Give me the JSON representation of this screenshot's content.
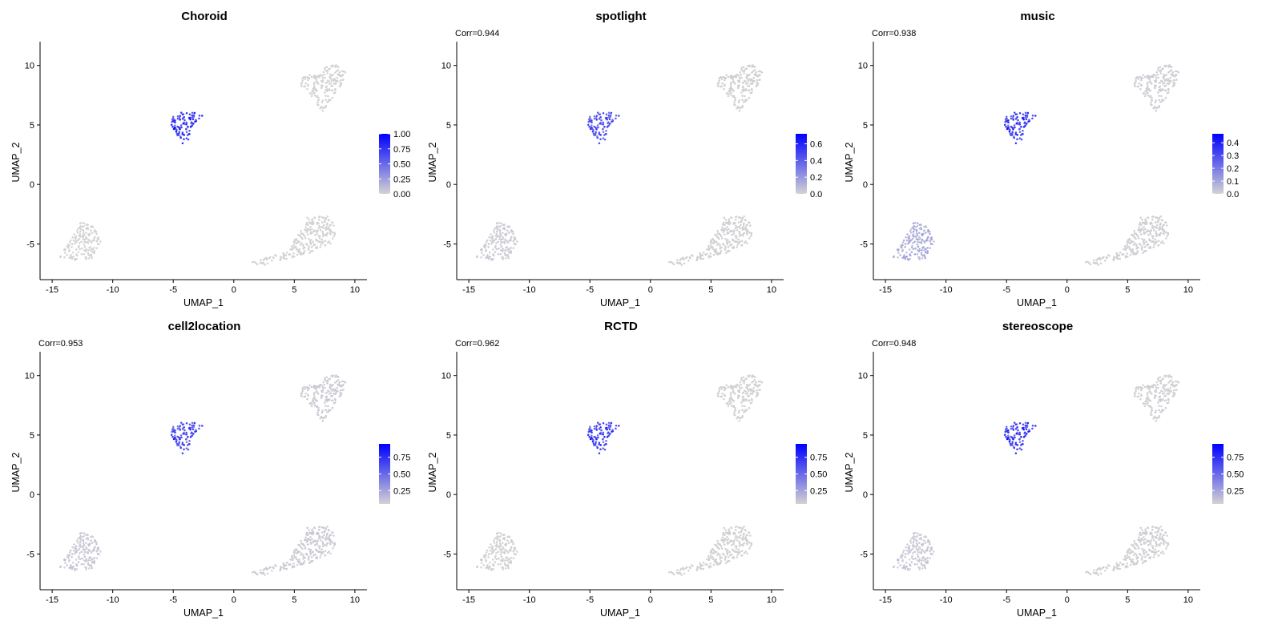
{
  "colors": {
    "low": "#D3D3D3",
    "high": "#0000FF"
  },
  "chart_data": [
    {
      "type": "scatter",
      "title": "Choroid",
      "annotation": "",
      "xlabel": "UMAP_1",
      "ylabel": "UMAP_2",
      "xlim": [
        -16,
        11
      ],
      "ylim": [
        -8,
        12
      ],
      "xticks": [
        "-15",
        "-10",
        "-5",
        "0",
        "5",
        "10"
      ],
      "yticks": [
        "-5",
        "0",
        "5",
        "10"
      ],
      "legend": {
        "min": 0,
        "max": 1.0,
        "ticks": [
          "0.00",
          "0.25",
          "0.50",
          "0.75",
          "1.00"
        ],
        "position": "right"
      },
      "cluster_values": {
        "A": 0.85,
        "B": 0.0,
        "C": 0.0,
        "D": 0.0
      }
    },
    {
      "type": "scatter",
      "title": "spotlight",
      "annotation": "Corr=0.944",
      "xlabel": "UMAP_1",
      "ylabel": "UMAP_2",
      "xlim": [
        -16,
        11
      ],
      "ylim": [
        -8,
        12
      ],
      "xticks": [
        "-15",
        "-10",
        "-5",
        "0",
        "5",
        "10"
      ],
      "yticks": [
        "-5",
        "0",
        "5",
        "10"
      ],
      "legend": {
        "min": 0,
        "max": 0.72,
        "ticks": [
          "0.0",
          "0.2",
          "0.4",
          "0.6"
        ],
        "position": "right"
      },
      "cluster_values": {
        "A": 0.5,
        "B": 0.03,
        "C": 0.01,
        "D": 0.01
      }
    },
    {
      "type": "scatter",
      "title": "music",
      "annotation": "Corr=0.938",
      "xlabel": "UMAP_1",
      "ylabel": "UMAP_2",
      "xlim": [
        -16,
        11
      ],
      "ylim": [
        -8,
        12
      ],
      "xticks": [
        "-15",
        "-10",
        "-5",
        "0",
        "5",
        "10"
      ],
      "yticks": [
        "-5",
        "0",
        "5",
        "10"
      ],
      "legend": {
        "min": 0,
        "max": 0.47,
        "ticks": [
          "0.0",
          "0.1",
          "0.2",
          "0.3",
          "0.4"
        ],
        "position": "right"
      },
      "cluster_values": {
        "A": 0.38,
        "B": 0.09,
        "C": 0.01,
        "D": 0.01
      }
    },
    {
      "type": "scatter",
      "title": "cell2location",
      "annotation": "Corr=0.953",
      "xlabel": "UMAP_1",
      "ylabel": "UMAP_2",
      "xlim": [
        -16,
        11
      ],
      "ylim": [
        -8,
        12
      ],
      "xticks": [
        "-15",
        "-10",
        "-5",
        "0",
        "5",
        "10"
      ],
      "yticks": [
        "-5",
        "0",
        "5",
        "10"
      ],
      "legend": {
        "min": 0.05,
        "max": 0.95,
        "ticks": [
          "0.25",
          "0.50",
          "0.75"
        ],
        "position": "right"
      },
      "cluster_values": {
        "A": 0.72,
        "B": 0.1,
        "C": 0.08,
        "D": 0.08
      }
    },
    {
      "type": "scatter",
      "title": "RCTD",
      "annotation": "Corr=0.962",
      "xlabel": "UMAP_1",
      "ylabel": "UMAP_2",
      "xlim": [
        -16,
        11
      ],
      "ylim": [
        -8,
        12
      ],
      "xticks": [
        "-15",
        "-10",
        "-5",
        "0",
        "5",
        "10"
      ],
      "yticks": [
        "-5",
        "0",
        "5",
        "10"
      ],
      "legend": {
        "min": 0.05,
        "max": 0.95,
        "ticks": [
          "0.25",
          "0.50",
          "0.75"
        ],
        "position": "right"
      },
      "cluster_values": {
        "A": 0.75,
        "B": 0.06,
        "C": 0.05,
        "D": 0.05
      }
    },
    {
      "type": "scatter",
      "title": "stereoscope",
      "annotation": "Corr=0.948",
      "xlabel": "UMAP_1",
      "ylabel": "UMAP_2",
      "xlim": [
        -16,
        11
      ],
      "ylim": [
        -8,
        12
      ],
      "xticks": [
        "-15",
        "-10",
        "-5",
        "0",
        "5",
        "10"
      ],
      "yticks": [
        "-5",
        "0",
        "5",
        "10"
      ],
      "legend": {
        "min": 0.05,
        "max": 0.95,
        "ticks": [
          "0.25",
          "0.50",
          "0.75"
        ],
        "position": "right"
      },
      "cluster_values": {
        "A": 0.78,
        "B": 0.1,
        "C": 0.06,
        "D": 0.06
      }
    }
  ]
}
